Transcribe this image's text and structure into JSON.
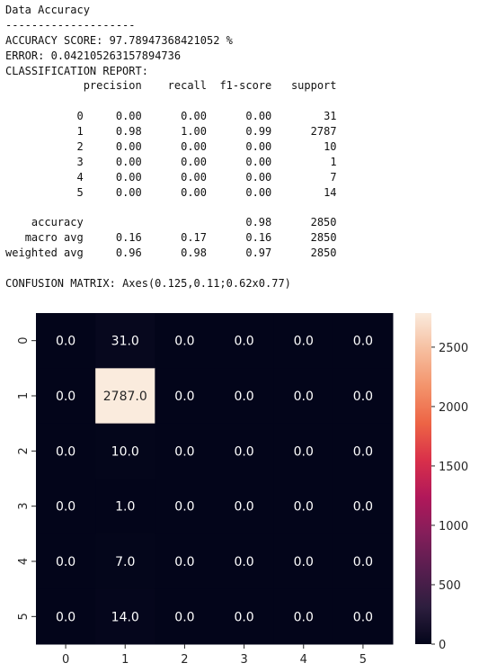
{
  "report": {
    "title": "Data Accuracy",
    "separator": "--------------------",
    "accuracy_label": "ACCURACY SCORE:",
    "accuracy_value": "97.78947368421052",
    "accuracy_unit": "%",
    "error_label": "ERROR:",
    "error_value": "0.042105263157894736",
    "classification_label": "CLASSIFICATION REPORT:",
    "headers": [
      "precision",
      "recall",
      "f1-score",
      "support"
    ],
    "classes": [
      {
        "label": "0",
        "precision": "0.00",
        "recall": "0.00",
        "f1": "0.00",
        "support": "31"
      },
      {
        "label": "1",
        "precision": "0.98",
        "recall": "1.00",
        "f1": "0.99",
        "support": "2787"
      },
      {
        "label": "2",
        "precision": "0.00",
        "recall": "0.00",
        "f1": "0.00",
        "support": "10"
      },
      {
        "label": "3",
        "precision": "0.00",
        "recall": "0.00",
        "f1": "0.00",
        "support": "1"
      },
      {
        "label": "4",
        "precision": "0.00",
        "recall": "0.00",
        "f1": "0.00",
        "support": "7"
      },
      {
        "label": "5",
        "precision": "0.00",
        "recall": "0.00",
        "f1": "0.00",
        "support": "14"
      }
    ],
    "summary": [
      {
        "label": "accuracy",
        "precision": "",
        "recall": "",
        "f1": "0.98",
        "support": "2850"
      },
      {
        "label": "macro avg",
        "precision": "0.16",
        "recall": "0.17",
        "f1": "0.16",
        "support": "2850"
      },
      {
        "label": "weighted avg",
        "precision": "0.96",
        "recall": "0.98",
        "f1": "0.97",
        "support": "2850"
      }
    ],
    "confusion_label": "CONFUSION MATRIX:",
    "confusion_value": "Axes(0.125,0.11;0.62x0.77)"
  },
  "colors": {
    "dark": "#03051a",
    "light": "#faebdd",
    "text_on_dark": "#ffffff",
    "text_on_light": "#262626",
    "colorbar_stops": [
      "#03051a",
      "#2d1e3e",
      "#561e4f",
      "#841e5a",
      "#b1185a",
      "#d9304a",
      "#ed6445",
      "#f3936b",
      "#f6be9f",
      "#faebdd"
    ]
  },
  "chart_data": {
    "type": "heatmap",
    "x_categories": [
      "0",
      "1",
      "2",
      "3",
      "4",
      "5"
    ],
    "y_categories": [
      "0",
      "1",
      "2",
      "3",
      "4",
      "5"
    ],
    "values": [
      [
        0,
        31,
        0,
        0,
        0,
        0
      ],
      [
        0,
        2787,
        0,
        0,
        0,
        0
      ],
      [
        0,
        10,
        0,
        0,
        0,
        0
      ],
      [
        0,
        1,
        0,
        0,
        0,
        0
      ],
      [
        0,
        7,
        0,
        0,
        0,
        0
      ],
      [
        0,
        14,
        0,
        0,
        0,
        0
      ]
    ],
    "cell_labels": [
      [
        "0.0",
        "31.0",
        "0.0",
        "0.0",
        "0.0",
        "0.0"
      ],
      [
        "0.0",
        "2787.0",
        "0.0",
        "0.0",
        "0.0",
        "0.0"
      ],
      [
        "0.0",
        "10.0",
        "0.0",
        "0.0",
        "0.0",
        "0.0"
      ],
      [
        "0.0",
        "1.0",
        "0.0",
        "0.0",
        "0.0",
        "0.0"
      ],
      [
        "0.0",
        "7.0",
        "0.0",
        "0.0",
        "0.0",
        "0.0"
      ],
      [
        "0.0",
        "14.0",
        "0.0",
        "0.0",
        "0.0",
        "0.0"
      ]
    ],
    "colorbar": {
      "range": [
        0,
        2787
      ],
      "ticks": [
        0,
        500,
        1000,
        1500,
        2000,
        2500
      ],
      "tick_labels": [
        "0",
        "500",
        "1000",
        "1500",
        "2000",
        "2500"
      ]
    }
  }
}
